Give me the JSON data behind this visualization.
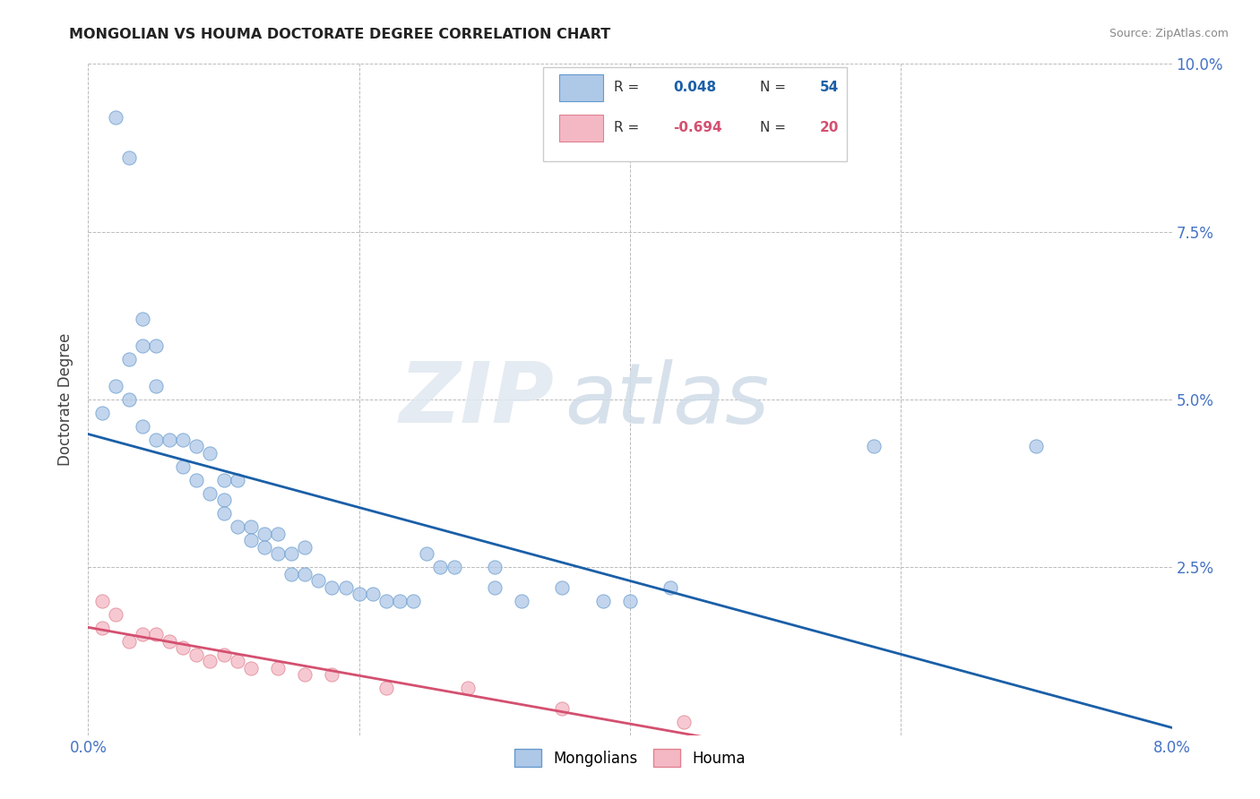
{
  "title": "MONGOLIAN VS HOUMA DOCTORATE DEGREE CORRELATION CHART",
  "source": "Source: ZipAtlas.com",
  "ylabel": "Doctorate Degree",
  "xlim": [
    0.0,
    0.08
  ],
  "ylim": [
    0.0,
    0.1
  ],
  "xtick_vals": [
    0.0,
    0.02,
    0.04,
    0.06,
    0.08
  ],
  "xticklabels": [
    "0.0%",
    "",
    "",
    "",
    "8.0%"
  ],
  "ytick_vals": [
    0.0,
    0.025,
    0.05,
    0.075,
    0.1
  ],
  "yticklabels_right": [
    "",
    "2.5%",
    "5.0%",
    "7.5%",
    "10.0%"
  ],
  "mongolian_color": "#aec8e8",
  "houma_color": "#f4b8c4",
  "mongolian_edge": "#6699cc",
  "houma_edge": "#e08090",
  "trend_blue": "#1a5fa8",
  "trend_pink": "#d45070",
  "R_mongolian": 0.048,
  "N_mongolian": 54,
  "R_houma": -0.694,
  "N_houma": 20,
  "legend_label1": "Mongolians",
  "legend_label2": "Houma",
  "watermark_zip": "ZIP",
  "watermark_atlas": "atlas",
  "background": "#ffffff",
  "tick_color": "#4472c4",
  "mongolian_size": 120,
  "houma_size": 120,
  "mon_x": [
    0.002,
    0.003,
    0.004,
    0.003,
    0.005,
    0.004,
    0.005,
    0.001,
    0.002,
    0.003,
    0.004,
    0.005,
    0.006,
    0.007,
    0.008,
    0.007,
    0.008,
    0.009,
    0.01,
    0.009,
    0.01,
    0.011,
    0.01,
    0.011,
    0.012,
    0.012,
    0.013,
    0.014,
    0.013,
    0.014,
    0.015,
    0.016,
    0.015,
    0.016,
    0.017,
    0.018,
    0.019,
    0.02,
    0.021,
    0.022,
    0.023,
    0.024,
    0.025,
    0.026,
    0.027,
    0.03,
    0.03,
    0.032,
    0.035,
    0.038,
    0.04,
    0.043,
    0.058,
    0.07
  ],
  "mon_y": [
    0.092,
    0.086,
    0.062,
    0.056,
    0.058,
    0.058,
    0.052,
    0.048,
    0.052,
    0.05,
    0.046,
    0.044,
    0.044,
    0.044,
    0.043,
    0.04,
    0.038,
    0.042,
    0.038,
    0.036,
    0.035,
    0.038,
    0.033,
    0.031,
    0.031,
    0.029,
    0.03,
    0.03,
    0.028,
    0.027,
    0.027,
    0.028,
    0.024,
    0.024,
    0.023,
    0.022,
    0.022,
    0.021,
    0.021,
    0.02,
    0.02,
    0.02,
    0.027,
    0.025,
    0.025,
    0.025,
    0.022,
    0.02,
    0.022,
    0.02,
    0.02,
    0.022,
    0.043,
    0.043
  ],
  "hou_x": [
    0.001,
    0.001,
    0.002,
    0.003,
    0.004,
    0.005,
    0.006,
    0.007,
    0.008,
    0.009,
    0.01,
    0.011,
    0.012,
    0.014,
    0.016,
    0.018,
    0.022,
    0.028,
    0.035,
    0.044
  ],
  "hou_y": [
    0.02,
    0.016,
    0.018,
    0.014,
    0.015,
    0.015,
    0.014,
    0.013,
    0.012,
    0.011,
    0.012,
    0.011,
    0.01,
    0.01,
    0.009,
    0.009,
    0.007,
    0.007,
    0.004,
    0.002
  ]
}
